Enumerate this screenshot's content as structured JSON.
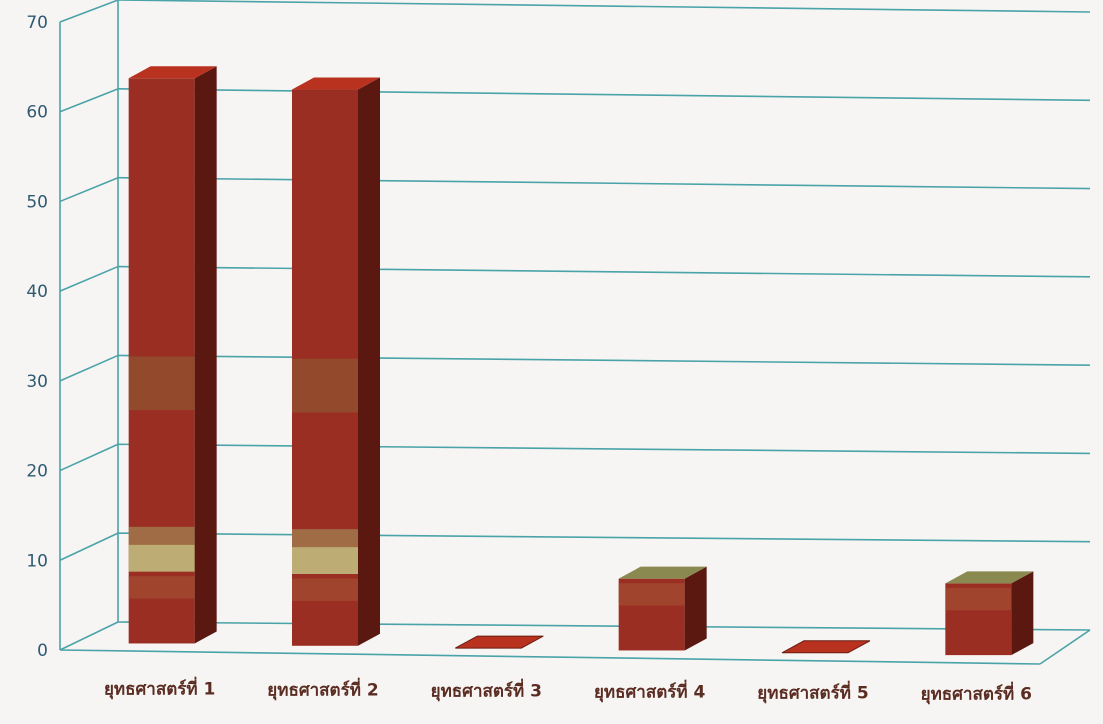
{
  "chart_data": {
    "type": "bar",
    "categories": [
      "ยุทธศาสตร์ที่ 1",
      "ยุทธศาสตร์ที่ 2",
      "ยุทธศาสตร์ที่ 3",
      "ยุทธศาสตร์ที่ 4",
      "ยุทธศาสตร์ที่ 5",
      "ยุทธศาสตร์ที่ 6"
    ],
    "values": [
      63,
      62,
      0,
      8,
      0,
      8
    ],
    "title": "",
    "xlabel": "",
    "ylabel": "",
    "ylim": [
      0,
      70
    ],
    "yticks": [
      0,
      10,
      20,
      30,
      40,
      50,
      60,
      70
    ],
    "grid": true,
    "three_d": true,
    "colors": {
      "bar_face": "#9a2e22",
      "bar_side": "#5a1810",
      "bar_top": "#b8321f",
      "bar_band": "#c8d890",
      "grid": "#4aa3a8",
      "background": "#f7f5f3"
    }
  }
}
